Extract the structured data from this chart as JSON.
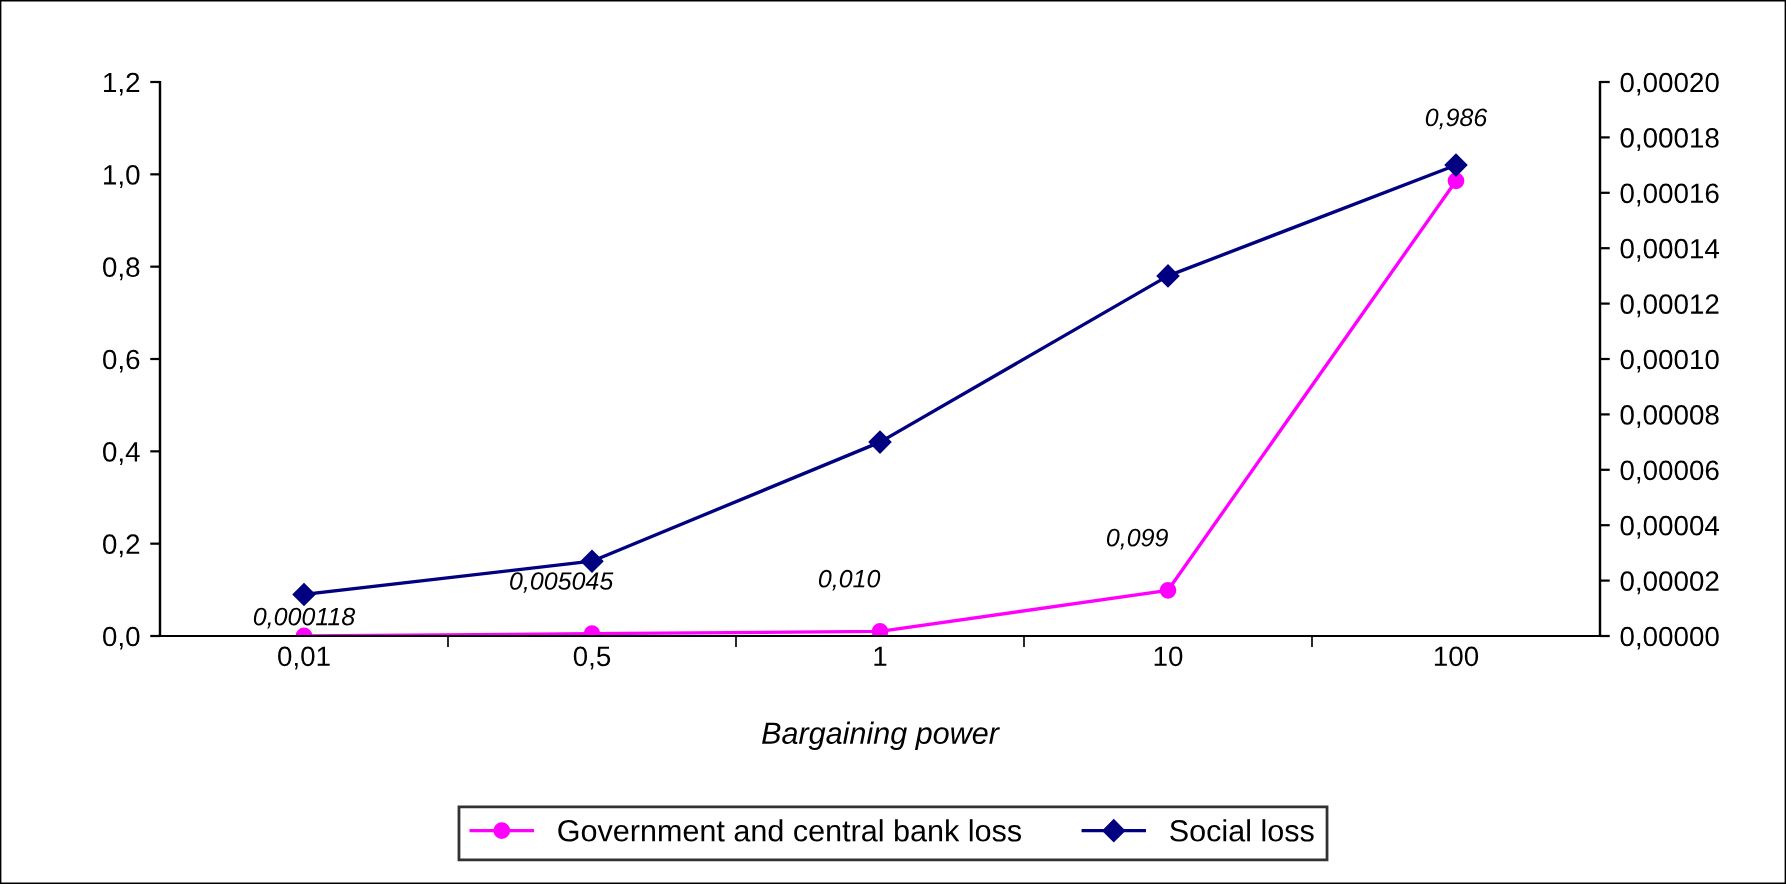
{
  "chart_data": {
    "type": "line",
    "xlabel": "Bargaining power",
    "categories": [
      "0,01",
      "0,5",
      "1",
      "10",
      "100"
    ],
    "series": [
      {
        "name": "Government and central bank loss",
        "color": "#ff00ff",
        "values": [
          0.000118,
          0.005045,
          0.01,
          0.099,
          0.986
        ],
        "value_labels": [
          "0,000118",
          "0,005045",
          "0,010",
          "0,099",
          "0,986"
        ],
        "marker": "circle"
      },
      {
        "name": "Social loss",
        "color": "#000080",
        "values": [
          1.5e-05,
          2.7e-05,
          7e-05,
          0.00013,
          0.00017
        ],
        "axis": "y2",
        "marker": "diamond"
      }
    ],
    "ylim": [
      0,
      1.2
    ],
    "yticks": [
      {
        "value": 0,
        "label": "0,0"
      },
      {
        "value": 0.2,
        "label": "0,2"
      },
      {
        "value": 0.4,
        "label": "0,4"
      },
      {
        "value": 0.6,
        "label": "0,6"
      },
      {
        "value": 0.8,
        "label": "0,8"
      },
      {
        "value": 1.0,
        "label": "1,0"
      },
      {
        "value": 1.2,
        "label": "1,2"
      }
    ],
    "y2lim": [
      0,
      0.0002
    ],
    "y2ticks": [
      {
        "value": 0,
        "label": "0,00000"
      },
      {
        "value": 2e-05,
        "label": "0,00002"
      },
      {
        "value": 4e-05,
        "label": "0,00004"
      },
      {
        "value": 6e-05,
        "label": "0,00006"
      },
      {
        "value": 8e-05,
        "label": "0,00008"
      },
      {
        "value": 0.0001,
        "label": "0,00010"
      },
      {
        "value": 0.00012,
        "label": "0,00012"
      },
      {
        "value": 0.00014,
        "label": "0,00014"
      },
      {
        "value": 0.00016,
        "label": "0,00016"
      },
      {
        "value": 0.00018,
        "label": "0,00018"
      },
      {
        "value": 0.0002,
        "label": "0,00020"
      }
    ],
    "legend": "bottom",
    "grid": false,
    "line_style": "solid"
  }
}
